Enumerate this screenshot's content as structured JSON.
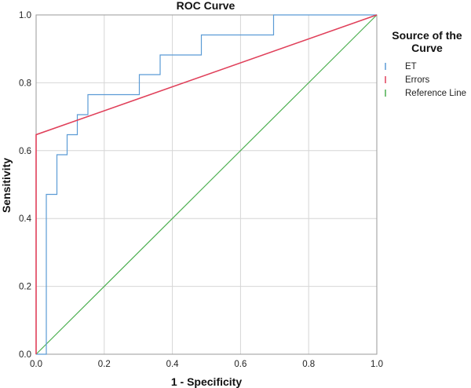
{
  "chart_data": {
    "type": "line",
    "title": "ROC Curve",
    "xlabel": "1 - Specificity",
    "ylabel": "Sensitivity",
    "xlim": [
      0,
      1
    ],
    "ylim": [
      0,
      1
    ],
    "x_ticks": [
      "0.0",
      "0.2",
      "0.4",
      "0.6",
      "0.8",
      "1.0"
    ],
    "y_ticks": [
      "0.0",
      "0.2",
      "0.4",
      "0.6",
      "0.8",
      "1.0"
    ],
    "grid": true,
    "legend": {
      "title_lines": [
        "Source of the",
        "Curve"
      ],
      "placement": "right"
    },
    "series": [
      {
        "name": "ET",
        "color": "#5b9bd5",
        "points": [
          [
            0,
            0
          ],
          [
            0.03,
            0
          ],
          [
            0.03,
            0.471
          ],
          [
            0.061,
            0.471
          ],
          [
            0.061,
            0.588
          ],
          [
            0.091,
            0.588
          ],
          [
            0.091,
            0.647
          ],
          [
            0.121,
            0.647
          ],
          [
            0.121,
            0.706
          ],
          [
            0.152,
            0.706
          ],
          [
            0.152,
            0.765
          ],
          [
            0.303,
            0.765
          ],
          [
            0.303,
            0.824
          ],
          [
            0.364,
            0.824
          ],
          [
            0.364,
            0.882
          ],
          [
            0.485,
            0.882
          ],
          [
            0.485,
            0.941
          ],
          [
            0.697,
            0.941
          ],
          [
            0.697,
            1.0
          ],
          [
            1.0,
            1.0
          ]
        ]
      },
      {
        "name": "Errors",
        "color": "#e0405a",
        "points": [
          [
            0,
            0
          ],
          [
            0,
            0.647
          ],
          [
            1.0,
            1.0
          ]
        ]
      },
      {
        "name": "Reference Line",
        "color": "#4caf50",
        "points": [
          [
            0,
            0
          ],
          [
            1.0,
            1.0
          ]
        ]
      }
    ]
  }
}
